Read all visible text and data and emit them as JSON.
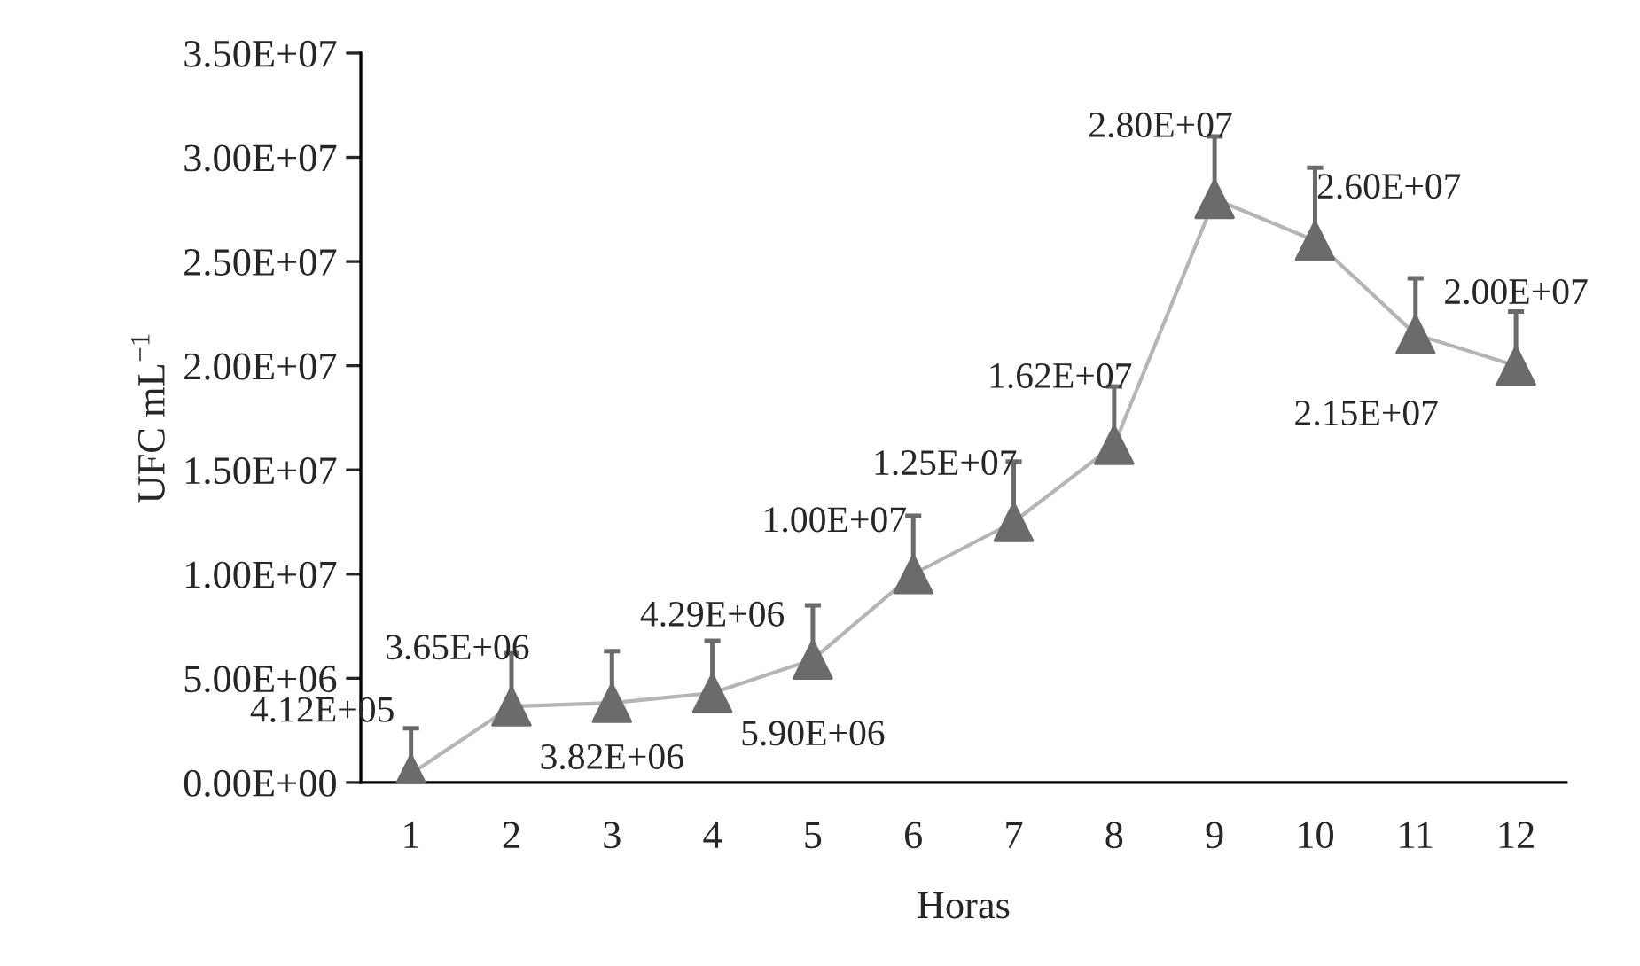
{
  "chart_data": {
    "type": "line",
    "xlabel": "Horas",
    "ylabel": "UFC mL$^{−1}$",
    "categories": [
      "1",
      "2",
      "3",
      "4",
      "5",
      "6",
      "7",
      "8",
      "9",
      "10",
      "11",
      "12"
    ],
    "series": [
      {
        "color": "#6b6b6b",
        "values": [
          412000,
          3650000,
          3820000,
          4290000,
          5900000,
          10000000,
          12500000,
          16200000,
          28000000,
          26000000,
          21500000,
          20000000
        ],
        "errors": [
          [
            412000,
            2600000
          ],
          [
            3650000,
            6200000
          ],
          [
            3820000,
            6300000
          ],
          [
            4290000,
            6800000
          ],
          [
            5900000,
            8500000
          ],
          [
            10000000,
            12800000
          ],
          [
            12500000,
            15400000
          ],
          [
            16200000,
            19000000
          ],
          [
            28000000,
            31000000
          ],
          [
            26000000,
            29500000
          ],
          [
            21500000,
            24200000
          ],
          [
            20000000,
            22600000
          ]
        ],
        "value_labels": [
          "4.12E+05",
          "3.65E+06",
          "3.82E+06",
          "4.29E+06",
          "5.90E+06",
          "1.00E+07",
          "1.25E+07",
          "1.62E+07",
          "2.80E+07",
          "2.60E+07",
          "2.15E+07",
          "2.00E+07"
        ]
      }
    ],
    "marker": "triangle",
    "grid": false,
    "legend": false,
    "ylim": [
      0,
      35000000
    ],
    "yticks": [
      {
        "value": 0,
        "label": "0.00E+00"
      },
      {
        "value": 5000000,
        "label": "5.00E+06"
      },
      {
        "value": 10000000,
        "label": "1.00E+07"
      },
      {
        "value": 15000000,
        "label": "1.50E+07"
      },
      {
        "value": 20000000,
        "label": "2.00E+07"
      },
      {
        "value": 25000000,
        "label": "2.50E+07"
      },
      {
        "value": 30000000,
        "label": "3.00E+07"
      },
      {
        "value": 35000000,
        "label": "3.50E+07"
      }
    ]
  }
}
